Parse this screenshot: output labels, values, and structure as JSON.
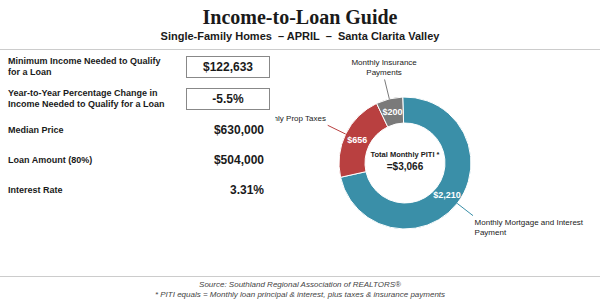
{
  "chart_data": {
    "type": "pie",
    "title": "Income-to-Loan Guide",
    "subtitle": "Single-Family Homes  – APRIL  –  Santa Clarita Valley",
    "categories": [
      "Monthly Mortgage and Interest\nPayment",
      "Monthly Prop Taxes",
      "Monthly Insurance\nPayments"
    ],
    "values": [
      2210,
      656,
      200
    ],
    "value_labels": [
      "$2,210",
      "$656",
      "$200"
    ],
    "colors": [
      "#3a8fa8",
      "#b94040",
      "#7a7a7a"
    ],
    "data_labels": true,
    "annotations": [
      "Minimum Income Needed to Qualify\nfor a Loan",
      "$122,633",
      "Year-to-Year Percentage Change in\nIncome Needed to Qualify for a Loan",
      "-5.5%",
      "Median Price",
      "$630,000",
      "Loan Amount (80%)",
      "$504,000",
      "Interest Rate",
      "3.31%",
      "Total Monthly PITI *",
      "=$3,066",
      "Source: Southland Regional Association of REALTORS®",
      "* PITI equals = Monthly loan principal & interest, plus taxes & insurance payments"
    ]
  }
}
